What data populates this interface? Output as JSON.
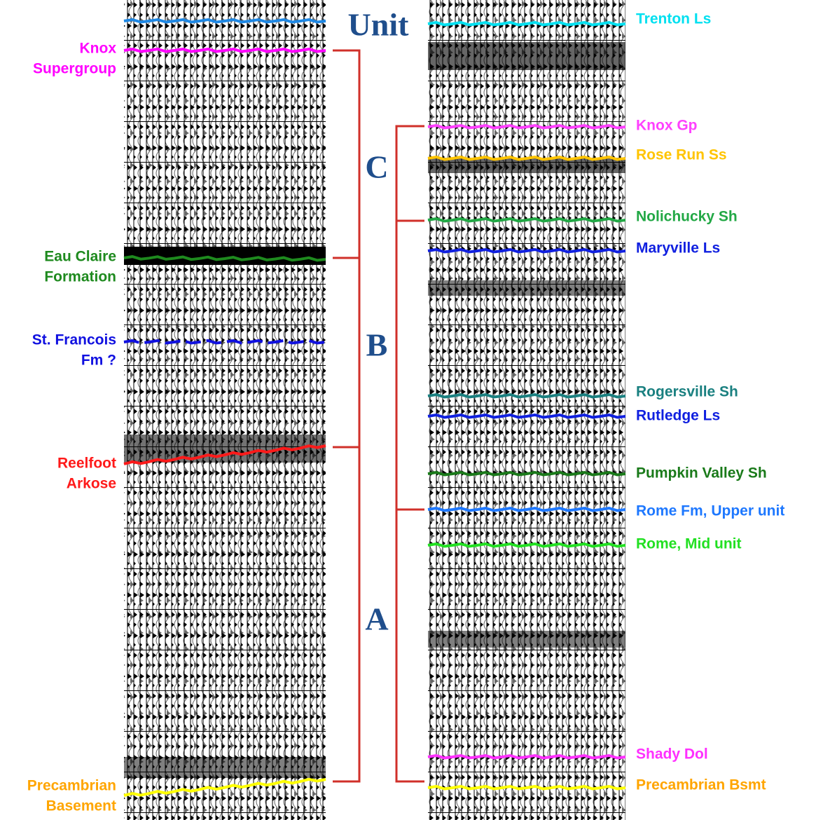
{
  "unit_header": "Unit",
  "units": [
    "C",
    "B",
    "A"
  ],
  "left_labels": [
    {
      "lines": [
        "Knox",
        "Supergroup"
      ],
      "color": "#ff00ff"
    },
    {
      "lines": [
        "Eau Claire",
        "Formation"
      ],
      "color": "#1e8a1e"
    },
    {
      "lines": [
        "St. Francois",
        "Fm ?"
      ],
      "color": "#1010e0"
    },
    {
      "lines": [
        "Reelfoot",
        "Arkose"
      ],
      "color": "#ff1a1a"
    },
    {
      "lines": [
        "Precambrian",
        "Basement"
      ],
      "color": "#ffa500"
    }
  ],
  "right_labels": [
    {
      "text": "Trenton Ls",
      "color": "#00e0f0"
    },
    {
      "text": "Knox Gp",
      "color": "#ff40ff"
    },
    {
      "text": "Rose Run Ss",
      "color": "#ffc400"
    },
    {
      "text": "Nolichucky Sh",
      "color": "#22a845"
    },
    {
      "text": "Maryville Ls",
      "color": "#1020e0"
    },
    {
      "text": "Rogersville Sh",
      "color": "#1a8080"
    },
    {
      "text": "Rutledge Ls",
      "color": "#1020e0"
    },
    {
      "text": "Pumpkin Valley Sh",
      "color": "#1a7a1a"
    },
    {
      "text": "Rome Fm, Upper unit",
      "color": "#1e78ff"
    },
    {
      "text": "Rome, Mid unit",
      "color": "#22e022"
    },
    {
      "text": "Shady Dol",
      "color": "#ff30ff"
    },
    {
      "text": "Precambrian Bsmt",
      "color": "#ffa500"
    }
  ]
}
